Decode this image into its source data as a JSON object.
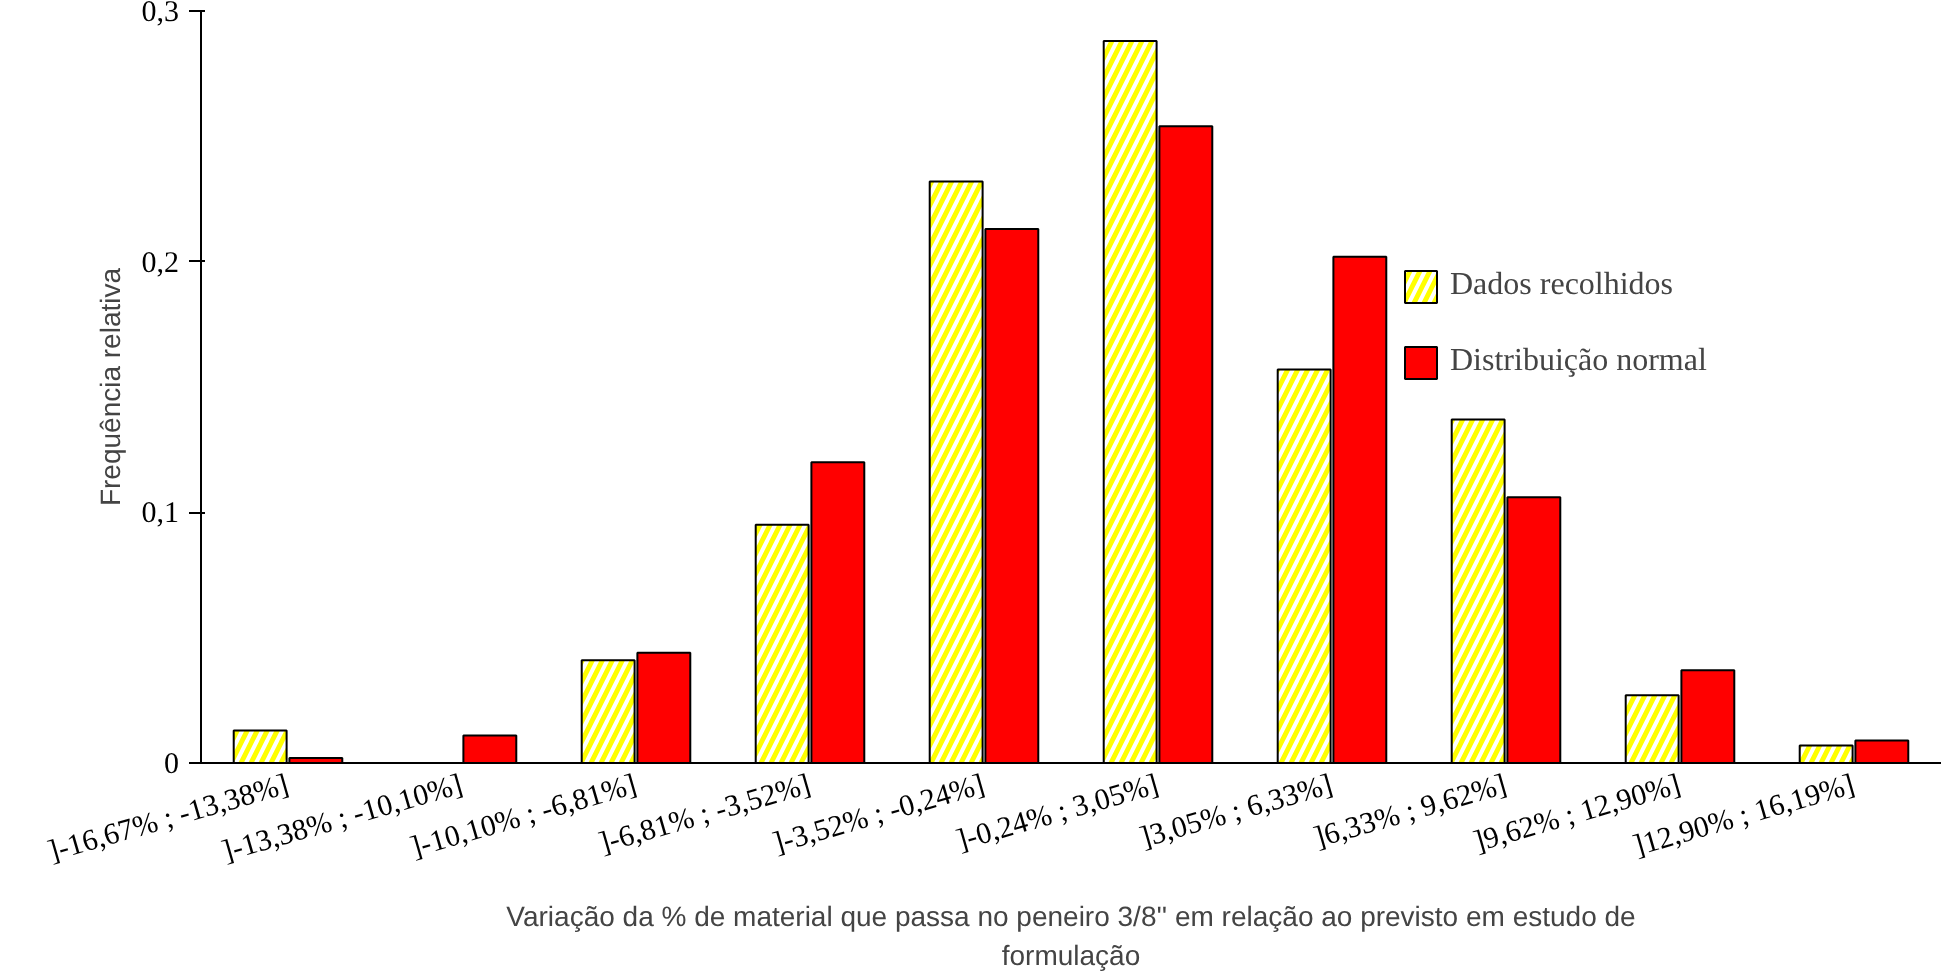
{
  "chart_data": {
    "type": "bar",
    "xlabel": "Variação da % de material que passa no peneiro 3/8'' em relação ao previsto em estudo de formulação",
    "ylabel": "Frequência relativa",
    "categories": [
      "]-16,67% ; -13,38%]",
      "]-13,38% ; -10,10%]",
      "]-10,10% ; -6,81%]",
      "]-6,81% ; -3,52%]",
      "]-3,52% ; -0,24%]",
      "]-0,24% ; 3,05%]",
      "]3,05% ; 6,33%]",
      "]6,33% ; 9,62%]",
      "]9,62% ; 12,90%]",
      "]12,90% ; 16,19%]"
    ],
    "series": [
      {
        "name": "Dados recolhidos",
        "color": "#ffff00",
        "values": [
          0.013,
          null,
          0.041,
          0.095,
          0.232,
          0.288,
          0.157,
          0.137,
          0.027,
          0.007
        ]
      },
      {
        "name": "Distribuição normal",
        "color": "#ff0000",
        "values": [
          0.002,
          0.011,
          0.044,
          0.12,
          0.213,
          0.254,
          0.202,
          0.106,
          0.037,
          0.009
        ]
      }
    ],
    "ylim": [
      0,
      0.3
    ],
    "yticks": [
      {
        "value": 0,
        "label": "0"
      },
      {
        "value": 0.1,
        "label": "0,1"
      },
      {
        "value": 0.2,
        "label": "0,2"
      },
      {
        "value": 0.3,
        "label": "0,3"
      }
    ],
    "grid": false,
    "legend": "right"
  }
}
